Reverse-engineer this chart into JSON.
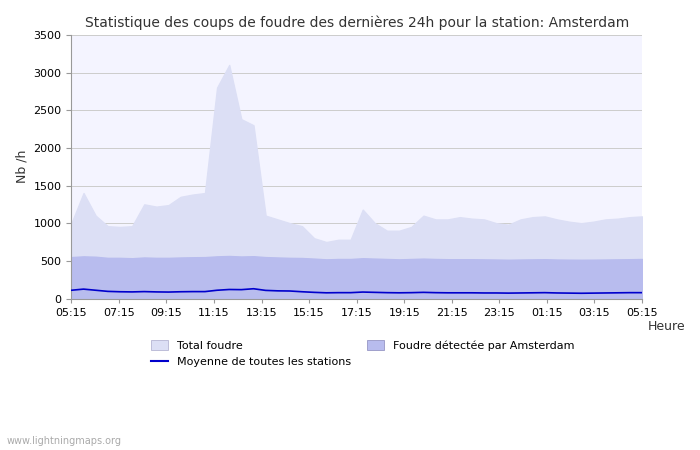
{
  "title": "Statistique des coups de foudre des dernières 24h pour la station: Amsterdam",
  "xlabel": "Heure",
  "ylabel": "Nb /h",
  "watermark": "www.lightningmaps.org",
  "x_ticks": [
    "05:15",
    "07:15",
    "09:15",
    "11:15",
    "13:15",
    "15:15",
    "17:15",
    "19:15",
    "21:15",
    "23:15",
    "01:15",
    "03:15",
    "05:15"
  ],
  "ylim": [
    0,
    3500
  ],
  "yticks": [
    0,
    500,
    1000,
    1500,
    2000,
    2500,
    3000,
    3500
  ],
  "total_foudre": [
    1000,
    1400,
    1100,
    960,
    950,
    960,
    1250,
    1220,
    1240,
    1350,
    1380,
    1400,
    2800,
    3100,
    2380,
    2300,
    1100,
    1050,
    1000,
    960,
    800,
    750,
    780,
    780,
    1180,
    1000,
    900,
    900,
    950,
    1100,
    1050,
    1050,
    1080,
    1060,
    1050,
    1000,
    980,
    1050,
    1080,
    1090,
    1050,
    1020,
    1000,
    1020,
    1050,
    1060,
    1080,
    1090
  ],
  "local_foudre": [
    550,
    560,
    555,
    540,
    540,
    535,
    545,
    540,
    540,
    545,
    548,
    550,
    560,
    565,
    558,
    562,
    550,
    545,
    540,
    538,
    530,
    520,
    525,
    525,
    535,
    530,
    525,
    520,
    525,
    530,
    525,
    522,
    522,
    522,
    520,
    518,
    515,
    518,
    520,
    522,
    518,
    516,
    515,
    516,
    518,
    520,
    522,
    525
  ],
  "moyenne": [
    110,
    125,
    110,
    95,
    90,
    88,
    92,
    88,
    86,
    90,
    92,
    92,
    110,
    120,
    118,
    130,
    108,
    102,
    100,
    90,
    82,
    76,
    78,
    78,
    86,
    82,
    78,
    76,
    78,
    82,
    78,
    76,
    76,
    76,
    74,
    74,
    72,
    74,
    76,
    78,
    74,
    72,
    70,
    72,
    74,
    76,
    78,
    78
  ],
  "bg_color": "#ffffff",
  "plot_bg_color": "#f4f4ff",
  "grid_color": "#cccccc",
  "total_foudre_color": "#dcdff5",
  "local_foudre_color": "#b8bcee",
  "moyenne_color": "#0000cc",
  "title_fontsize": 10,
  "axis_fontsize": 9,
  "tick_fontsize": 8,
  "legend_fontsize": 8
}
